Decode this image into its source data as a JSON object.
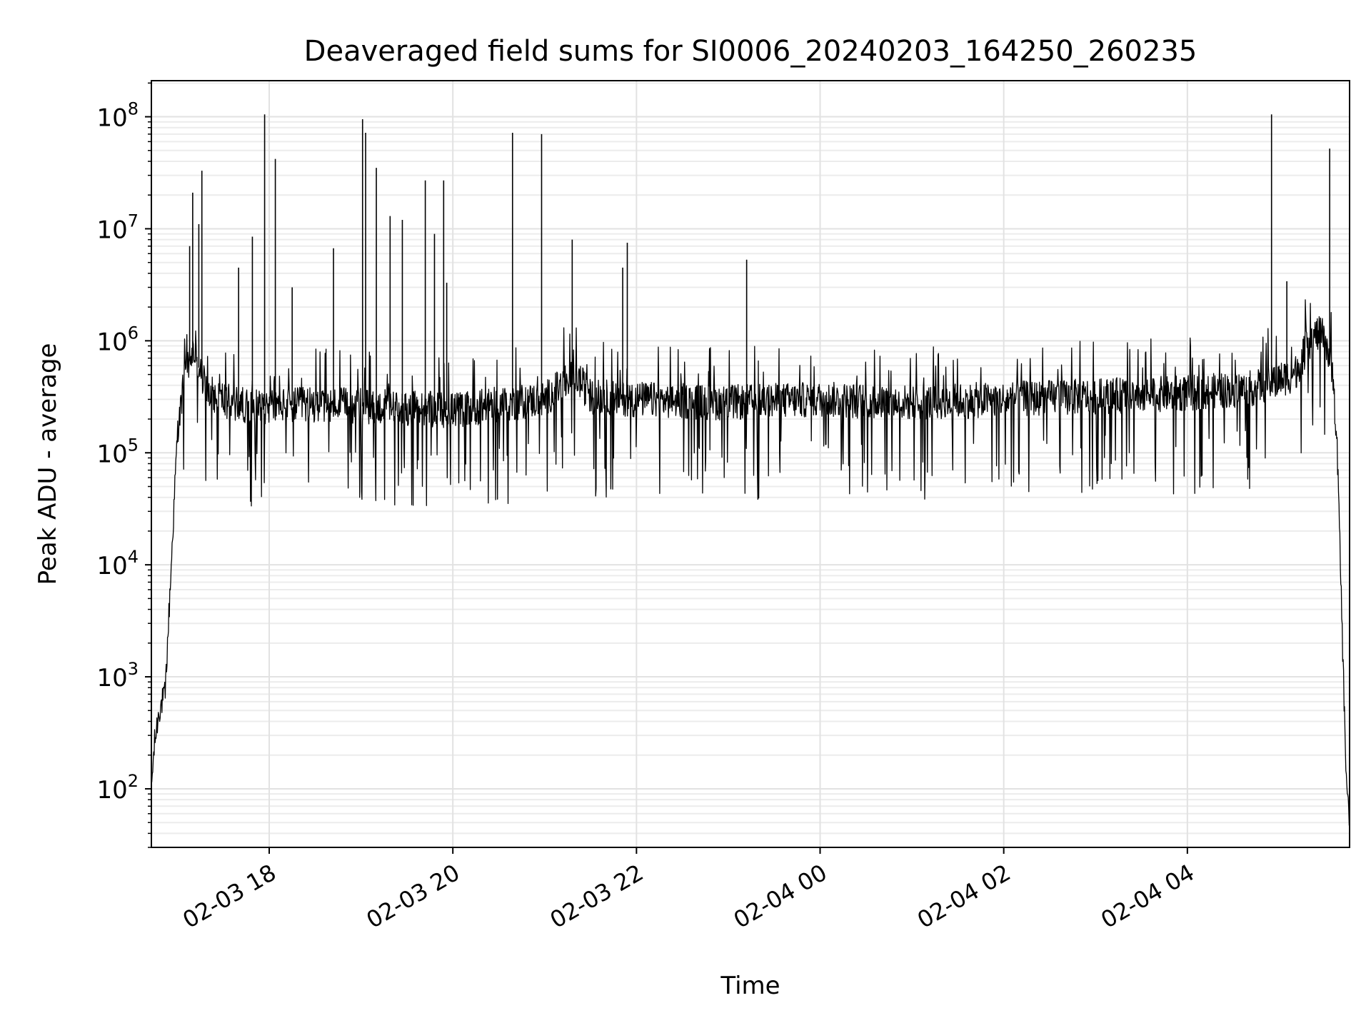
{
  "chart_data": {
    "type": "line",
    "title": "Deaveraged field sums for SI0006_20240203_164250_260235",
    "xlabel": "Time",
    "ylabel": "Peak ADU - average",
    "x_scale": "time",
    "y_scale": "log",
    "xlim": [
      "2024-02-03 16:43",
      "2024-02-04 05:46"
    ],
    "ylim": [
      30,
      210000000
    ],
    "grid": true,
    "grid_minor": true,
    "legend": "none",
    "line_color": "#000000",
    "x_tick_labels": [
      {
        "t": "2024-02-03 18:00",
        "label": "02-03 18"
      },
      {
        "t": "2024-02-03 20:00",
        "label": "02-03 20"
      },
      {
        "t": "2024-02-03 22:00",
        "label": "02-03 22"
      },
      {
        "t": "2024-02-04 00:00",
        "label": "02-04 00"
      },
      {
        "t": "2024-02-04 02:00",
        "label": "02-04 02"
      },
      {
        "t": "2024-02-04 04:00",
        "label": "02-04 04"
      }
    ],
    "y_tick_labels": [
      {
        "value": 100,
        "base": "10",
        "exp": "2"
      },
      {
        "value": 1000,
        "base": "10",
        "exp": "3"
      },
      {
        "value": 10000,
        "base": "10",
        "exp": "4"
      },
      {
        "value": 100000,
        "base": "10",
        "exp": "5"
      },
      {
        "value": 1000000,
        "base": "10",
        "exp": "6"
      },
      {
        "value": 10000000,
        "base": "10",
        "exp": "7"
      },
      {
        "value": 100000000,
        "base": "10",
        "exp": "8"
      }
    ],
    "series": [
      {
        "x": [
          "2024-02-03 16:43",
          "2024-02-03 16:45",
          "2024-02-03 16:48",
          "2024-02-03 16:52",
          "2024-02-03 16:56",
          "2024-02-03 17:00",
          "2024-02-03 17:05",
          "2024-02-03 17:10",
          "2024-02-03 17:20",
          "2024-02-03 17:35",
          "2024-02-03 17:50",
          "2024-02-03 18:30",
          "2024-02-03 19:00",
          "2024-02-03 19:30",
          "2024-02-03 20:00",
          "2024-02-03 20:30",
          "2024-02-03 21:00",
          "2024-02-03 21:20",
          "2024-02-03 21:30",
          "2024-02-03 22:00",
          "2024-02-03 23:00",
          "2024-02-04 00:00",
          "2024-02-04 01:00",
          "2024-02-04 02:00",
          "2024-02-04 03:00",
          "2024-02-04 04:00",
          "2024-02-04 04:45",
          "2024-02-04 05:10",
          "2024-02-04 05:15",
          "2024-02-04 05:20",
          "2024-02-04 05:25",
          "2024-02-04 05:30",
          "2024-02-04 05:35",
          "2024-02-04 05:38",
          "2024-02-04 05:40",
          "2024-02-04 05:42",
          "2024-02-04 05:43",
          "2024-02-04 05:44",
          "2024-02-04 05:45",
          "2024-02-04 05:46"
        ],
        "y": [
          100,
          250,
          500,
          700,
          10000,
          150000,
          500000,
          800000,
          350000,
          280000,
          260000,
          270000,
          260000,
          250000,
          240000,
          270000,
          300000,
          500000,
          320000,
          300000,
          280000,
          300000,
          280000,
          300000,
          320000,
          340000,
          380000,
          500000,
          700000,
          1000000,
          1150000,
          1100000,
          500000,
          100000,
          10000,
          1000,
          300,
          120,
          80,
          35
        ],
        "spikes": [
          {
            "t": "2024-02-03 17:08",
            "y": 7000000
          },
          {
            "t": "2024-02-03 17:10",
            "y": 21000000
          },
          {
            "t": "2024-02-03 17:14",
            "y": 11000000
          },
          {
            "t": "2024-02-03 17:16",
            "y": 33000000
          },
          {
            "t": "2024-02-03 17:40",
            "y": 4500000
          },
          {
            "t": "2024-02-03 17:49",
            "y": 8500000
          },
          {
            "t": "2024-02-03 17:57",
            "y": 105000000
          },
          {
            "t": "2024-02-03 18:04",
            "y": 42000000
          },
          {
            "t": "2024-02-03 18:15",
            "y": 3000000
          },
          {
            "t": "2024-02-03 18:42",
            "y": 6700000
          },
          {
            "t": "2024-02-03 19:01",
            "y": 95000000
          },
          {
            "t": "2024-02-03 19:03",
            "y": 72000000
          },
          {
            "t": "2024-02-03 19:10",
            "y": 35000000
          },
          {
            "t": "2024-02-03 19:19",
            "y": 13000000
          },
          {
            "t": "2024-02-03 19:27",
            "y": 12000000
          },
          {
            "t": "2024-02-03 19:42",
            "y": 27000000
          },
          {
            "t": "2024-02-03 19:48",
            "y": 9000000
          },
          {
            "t": "2024-02-03 19:54",
            "y": 27000000
          },
          {
            "t": "2024-02-03 19:56",
            "y": 3300000
          },
          {
            "t": "2024-02-03 20:39",
            "y": 72000000
          },
          {
            "t": "2024-02-03 20:58",
            "y": 70000000
          },
          {
            "t": "2024-02-03 21:18",
            "y": 8000000
          },
          {
            "t": "2024-02-03 21:51",
            "y": 4500000
          },
          {
            "t": "2024-02-03 21:54",
            "y": 7500000
          },
          {
            "t": "2024-02-03 23:12",
            "y": 5300000
          },
          {
            "t": "2024-02-04 04:55",
            "y": 105000000
          },
          {
            "t": "2024-02-04 05:05",
            "y": 3400000
          },
          {
            "t": "2024-02-04 05:33",
            "y": 52000000
          }
        ]
      }
    ]
  }
}
